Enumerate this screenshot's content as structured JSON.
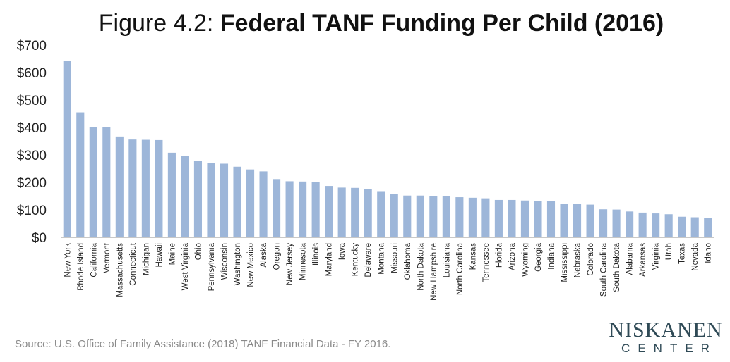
{
  "figure_label": "Figure 4.2:",
  "figure_title": "Federal TANF Funding Per Child (2016)",
  "source": "Source: U.S. Office of Family Assistance (2018) TANF Financial Data - FY 2016.",
  "logo": {
    "name": "NISKANEN",
    "sub": "CENTER",
    "color": "#2f4a56"
  },
  "chart_data": {
    "type": "bar",
    "title": "Federal TANF Funding Per Child (2016)",
    "xlabel": "",
    "ylabel": "",
    "ylim": [
      0,
      700
    ],
    "yticks": [
      0,
      100,
      200,
      300,
      400,
      500,
      600,
      700
    ],
    "ytick_labels": [
      "$0",
      "$100",
      "$200",
      "$300",
      "$400",
      "$500",
      "$600",
      "$700"
    ],
    "grid": false,
    "legend": "none",
    "bar_color": "#9db6d9",
    "categories": [
      "New York",
      "Rhode Island",
      "California",
      "Vermont",
      "Massachusetts",
      "Connecticut",
      "Michigan",
      "Hawaii",
      "Maine",
      "West Virginia",
      "Ohio",
      "Pennsylvania",
      "Wisconsin",
      "Washington",
      "New Mexico",
      "Alaska",
      "Oregon",
      "New Jersey",
      "Minnesota",
      "Illinois",
      "Maryland",
      "Iowa",
      "Kentucky",
      "Delaware",
      "Montana",
      "Missouri",
      "Oklahoma",
      "North Dakota",
      "New Hampshire",
      "Louisiana",
      "North Carolina",
      "Kansas",
      "Tennessee",
      "Florida",
      "Arizona",
      "Wyoming",
      "Georgia",
      "Indiana",
      "Mississippi",
      "Nebraska",
      "Colorado",
      "South Carolina",
      "South Dakota",
      "Alabama",
      "Arkansas",
      "Virginia",
      "Utah",
      "Texas",
      "Nevada",
      "Idaho"
    ],
    "values": [
      642,
      455,
      402,
      401,
      367,
      356,
      355,
      354,
      308,
      295,
      279,
      270,
      268,
      257,
      247,
      240,
      212,
      204,
      203,
      201,
      187,
      181,
      180,
      176,
      168,
      158,
      152,
      152,
      149,
      149,
      146,
      144,
      142,
      136,
      136,
      134,
      133,
      132,
      122,
      121,
      119,
      102,
      101,
      94,
      90,
      87,
      84,
      75,
      73,
      71
    ]
  }
}
